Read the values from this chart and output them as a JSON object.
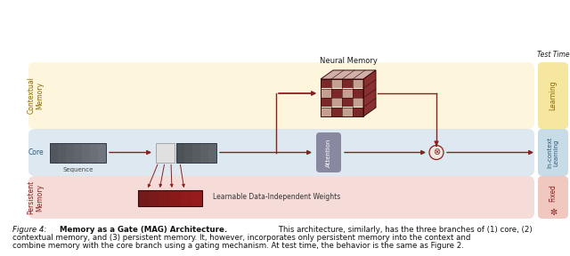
{
  "bg_color": "#ffffff",
  "contextual_bg": "#fdf6dc",
  "core_bg": "#dde8f0",
  "persistent_bg": "#f5dcd8",
  "right_yellow": "#f5e6a0",
  "right_blue": "#c8dce8",
  "right_pink": "#f0c8c0",
  "arrow_color": "#8b2020",
  "text_dark": "#1a1a1a",
  "text_brown": "#8b6800",
  "text_blue": "#2a5a7a",
  "text_red": "#8b2020",
  "attention_color": "#8888a0",
  "label_contextual": "Contextual\nMemory",
  "label_core": "Core",
  "label_persistent": "Persistent\nMemory",
  "label_sequence": "Sequence",
  "label_neural_memory": "Neural Memory",
  "label_learnable": "Learnable Data-Independent Weights",
  "label_attention": "Attention",
  "label_learning": "Learning",
  "label_incontext": "In-context\nLearning",
  "label_fixed": "Fixed",
  "label_testtime": "Test Time",
  "cap_prefix": "Figure 4: ",
  "cap_bold": "Memory as a Gate (MAG) Architecture.",
  "cap_line1": " This architecture, similarly, has the three branches of (1) core, (2)",
  "cap_line2": "contextual memory, and (3) persistent memory. It, however, incorporates only persistent memory into the context and",
  "cap_line3": "combine memory with the core branch using a gating mechanism. At test time, the behavior is the same as Figure 2."
}
